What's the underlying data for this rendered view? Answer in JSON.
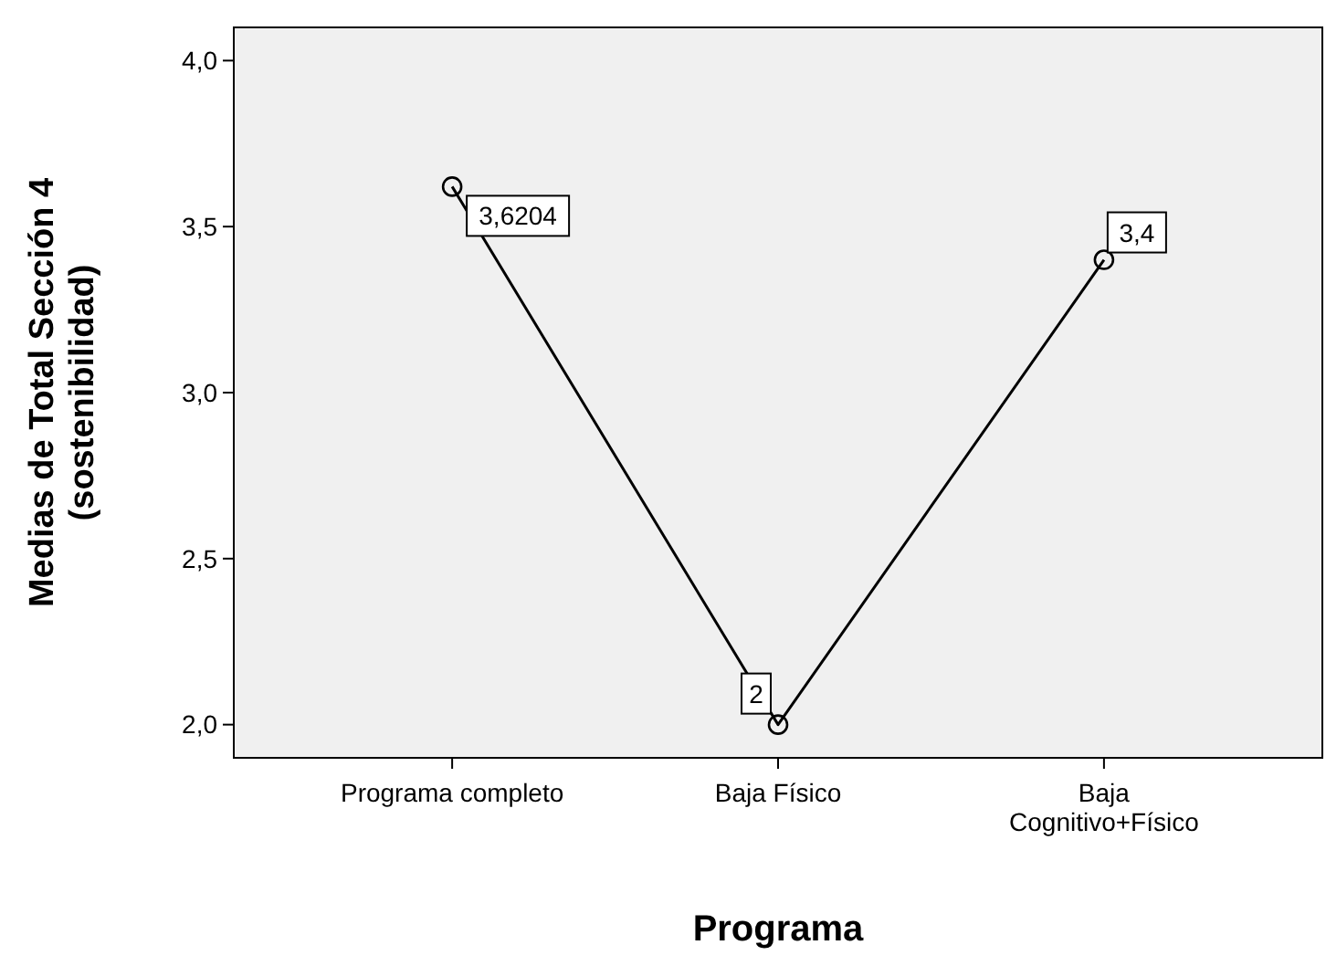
{
  "chart_data": {
    "type": "line",
    "xlabel": "Programa",
    "ylabel": "Medias de Total Sección 4\n(sostenibilidad)",
    "categories": [
      "Programa completo",
      "Baja Físico",
      "Baja\nCognitivo+Físico"
    ],
    "series": [
      {
        "color": "#000000",
        "values": [
          3.6204,
          2,
          3.4
        ],
        "value_labels": [
          "3,6204",
          "2",
          "3,4"
        ]
      }
    ],
    "ylim": [
      1.9,
      4.1
    ],
    "yticks": [
      {
        "value": 2,
        "label": "2,0"
      },
      {
        "value": 2.5,
        "label": "2,5"
      },
      {
        "value": 3,
        "label": "3,0"
      },
      {
        "value": 3.5,
        "label": "3,5"
      },
      {
        "value": 4,
        "label": "4,0"
      }
    ],
    "marker": "circle",
    "line_style": "solid"
  }
}
